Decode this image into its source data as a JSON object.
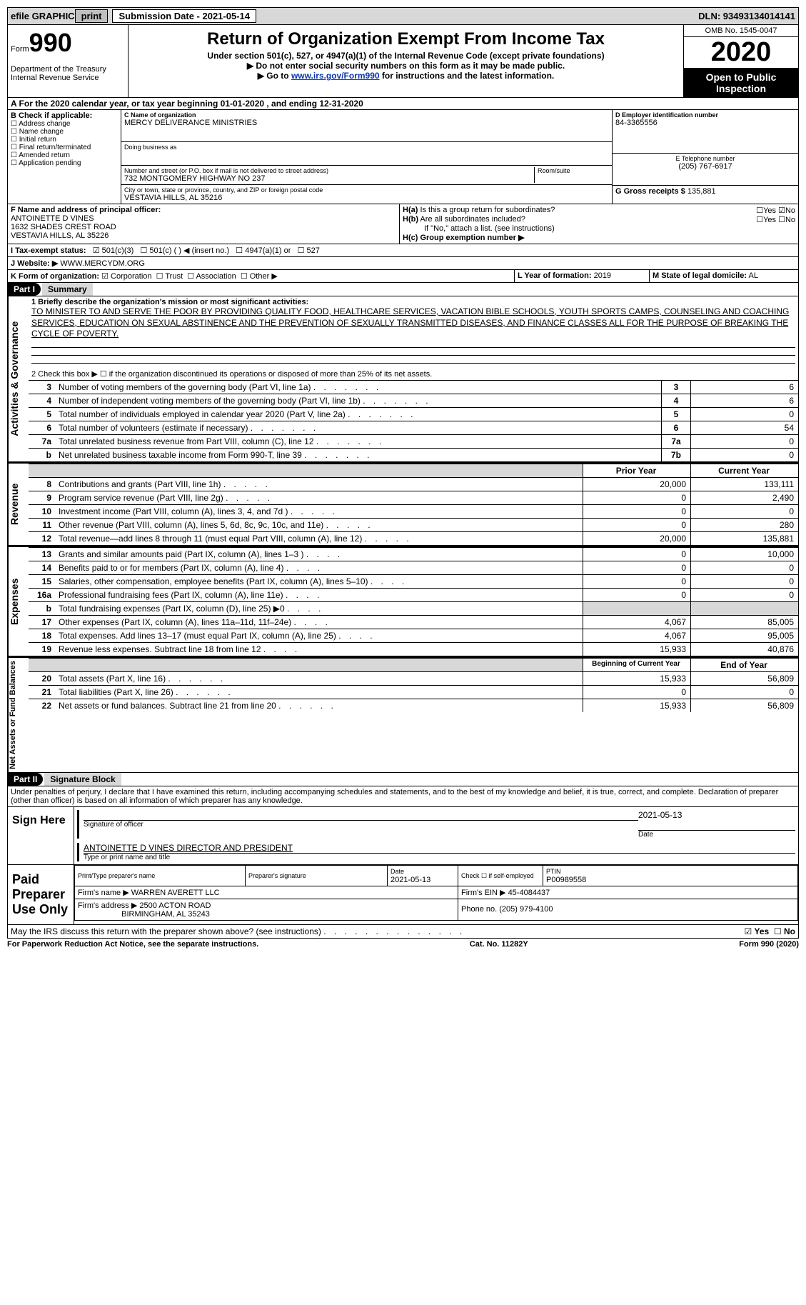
{
  "topbar": {
    "efile": "efile GRAPHIC",
    "print": "print",
    "submission": "Submission Date - 2021-05-14",
    "dln": "DLN: 93493134014141"
  },
  "header": {
    "form_prefix": "Form",
    "form_number": "990",
    "department": "Department of the Treasury\nInternal Revenue Service",
    "title": "Return of Organization Exempt From Income Tax",
    "subtitle": "Under section 501(c), 527, or 4947(a)(1) of the Internal Revenue Code (except private foundations)",
    "instr1": "▶ Do not enter social security numbers on this form as it may be made public.",
    "instr2_pre": "▶ Go to ",
    "instr2_link": "www.irs.gov/Form990",
    "instr2_post": " for instructions and the latest information.",
    "omb": "OMB No. 1545-0047",
    "year": "2020",
    "open": "Open to Public Inspection"
  },
  "period": "A For the 2020 calendar year, or tax year beginning 01-01-2020   , and ending 12-31-2020",
  "section_b": {
    "header": "B Check if applicable:",
    "items": [
      "Address change",
      "Name change",
      "Initial return",
      "Final return/terminated",
      "Amended return",
      "Application pending"
    ]
  },
  "section_c": {
    "name_label": "C Name of organization",
    "name": "MERCY DELIVERANCE MINISTRIES",
    "dba_label": "Doing business as",
    "street_label": "Number and street (or P.O. box if mail is not delivered to street address)",
    "room_label": "Room/suite",
    "street": "732 MONTGOMERY HIGHWAY NO 237",
    "city_label": "City or town, state or province, country, and ZIP or foreign postal code",
    "city": "VESTAVIA HILLS, AL  35216"
  },
  "section_d": {
    "label": "D Employer identification number",
    "value": "84-3365556"
  },
  "section_e": {
    "label": "E Telephone number",
    "value": "(205) 767-6917"
  },
  "section_g": {
    "label": "G Gross receipts $",
    "value": "135,881"
  },
  "section_f": {
    "label": "F  Name and address of principal officer:",
    "name": "ANTOINETTE D VINES",
    "street": "1632 SHADES CREST ROAD",
    "city": "VESTAVIA HILLS, AL  35226"
  },
  "section_h": {
    "a_label": "H(a)  Is this a group return for subordinates?",
    "b_label": "H(b)  Are all subordinates included?",
    "b_note": "If \"No,\" attach a list. (see instructions)",
    "c_label": "H(c)  Group exemption number ▶",
    "yes": "Yes",
    "no": "No"
  },
  "status": {
    "label": "I  Tax-exempt status:",
    "o501c3": "501(c)(3)",
    "o501c": "501(c) (  ) ◀ (insert no.)",
    "o4947": "4947(a)(1) or",
    "o527": "527"
  },
  "website": {
    "label": "J  Website: ▶",
    "value": "WWW.MERCYDM.ORG"
  },
  "section_k": {
    "label": "K Form of organization:",
    "corp": "Corporation",
    "trust": "Trust",
    "assoc": "Association",
    "other": "Other ▶"
  },
  "section_l": {
    "label": "L Year of formation:",
    "value": "2019"
  },
  "section_m": {
    "label": "M State of legal domicile:",
    "value": "AL"
  },
  "part1": {
    "header": "Part I",
    "title": "Summary",
    "l1_label": "1  Briefly describe the organization's mission or most significant activities:",
    "mission": "TO MINISTER TO AND SERVE THE POOR BY PROVIDING QUALITY FOOD, HEALTHCARE SERVICES, VACATION BIBLE SCHOOLS, YOUTH SPORTS CAMPS, COUNSELING AND COACHING SERVICES, EDUCATION ON SEXUAL ABSTINENCE AND THE PREVENTION OF SEXUALLY TRANSMITTED DISEASES, AND FINANCE CLASSES ALL FOR THE PURPOSE OF BREAKING THE CYCLE OF POVERTY.",
    "l2": "2   Check this box ▶ ☐  if the organization discontinued its operations or disposed of more than 25% of its net assets.",
    "vert_gov": "Activities & Governance",
    "vert_rev": "Revenue",
    "vert_exp": "Expenses",
    "vert_bal": "Net Assets or Fund Balances"
  },
  "gov_lines": [
    {
      "n": "3",
      "t": "Number of voting members of the governing body (Part VI, line 1a)",
      "box": "3",
      "v": "6"
    },
    {
      "n": "4",
      "t": "Number of independent voting members of the governing body (Part VI, line 1b)",
      "box": "4",
      "v": "6"
    },
    {
      "n": "5",
      "t": "Total number of individuals employed in calendar year 2020 (Part V, line 2a)",
      "box": "5",
      "v": "0"
    },
    {
      "n": "6",
      "t": "Total number of volunteers (estimate if necessary)",
      "box": "6",
      "v": "54"
    },
    {
      "n": "7a",
      "t": "Total unrelated business revenue from Part VIII, column (C), line 12",
      "box": "7a",
      "v": "0"
    },
    {
      "n": "b",
      "t": "Net unrelated business taxable income from Form 990-T, line 39",
      "box": "7b",
      "v": "0"
    }
  ],
  "rev_header": {
    "prior": "Prior Year",
    "current": "Current Year"
  },
  "rev_lines": [
    {
      "n": "8",
      "t": "Contributions and grants (Part VIII, line 1h)",
      "p": "20,000",
      "c": "133,111"
    },
    {
      "n": "9",
      "t": "Program service revenue (Part VIII, line 2g)",
      "p": "0",
      "c": "2,490"
    },
    {
      "n": "10",
      "t": "Investment income (Part VIII, column (A), lines 3, 4, and 7d )",
      "p": "0",
      "c": "0"
    },
    {
      "n": "11",
      "t": "Other revenue (Part VIII, column (A), lines 5, 6d, 8c, 9c, 10c, and 11e)",
      "p": "0",
      "c": "280"
    },
    {
      "n": "12",
      "t": "Total revenue—add lines 8 through 11 (must equal Part VIII, column (A), line 12)",
      "p": "20,000",
      "c": "135,881"
    }
  ],
  "exp_lines": [
    {
      "n": "13",
      "t": "Grants and similar amounts paid (Part IX, column (A), lines 1–3 )",
      "p": "0",
      "c": "10,000"
    },
    {
      "n": "14",
      "t": "Benefits paid to or for members (Part IX, column (A), line 4)",
      "p": "0",
      "c": "0"
    },
    {
      "n": "15",
      "t": "Salaries, other compensation, employee benefits (Part IX, column (A), lines 5–10)",
      "p": "0",
      "c": "0"
    },
    {
      "n": "16a",
      "t": "Professional fundraising fees (Part IX, column (A), line 11e)",
      "p": "0",
      "c": "0"
    },
    {
      "n": "b",
      "t": "Total fundraising expenses (Part IX, column (D), line 25) ▶0",
      "p": "",
      "c": "",
      "grey": true
    },
    {
      "n": "17",
      "t": "Other expenses (Part IX, column (A), lines 11a–11d, 11f–24e)",
      "p": "4,067",
      "c": "85,005"
    },
    {
      "n": "18",
      "t": "Total expenses. Add lines 13–17 (must equal Part IX, column (A), line 25)",
      "p": "4,067",
      "c": "95,005"
    },
    {
      "n": "19",
      "t": "Revenue less expenses. Subtract line 18 from line 12",
      "p": "15,933",
      "c": "40,876"
    }
  ],
  "bal_header": {
    "prior": "Beginning of Current Year",
    "current": "End of Year"
  },
  "bal_lines": [
    {
      "n": "20",
      "t": "Total assets (Part X, line 16)",
      "p": "15,933",
      "c": "56,809"
    },
    {
      "n": "21",
      "t": "Total liabilities (Part X, line 26)",
      "p": "0",
      "c": "0"
    },
    {
      "n": "22",
      "t": "Net assets or fund balances. Subtract line 21 from line 20",
      "p": "15,933",
      "c": "56,809"
    }
  ],
  "part2": {
    "header": "Part II",
    "title": "Signature Block",
    "declaration": "Under penalties of perjury, I declare that I have examined this return, including accompanying schedules and statements, and to the best of my knowledge and belief, it is true, correct, and complete. Declaration of preparer (other than officer) is based on all information of which preparer has any knowledge."
  },
  "sign": {
    "here": "Sign Here",
    "sig_label": "Signature of officer",
    "date_label": "Date",
    "date": "2021-05-13",
    "name": "ANTOINETTE D VINES  DIRECTOR AND PRESIDENT",
    "name_label": "Type or print name and title"
  },
  "preparer": {
    "label": "Paid Preparer Use Only",
    "print_label": "Print/Type preparer's name",
    "sig_label": "Preparer's signature",
    "date_label": "Date",
    "date": "2021-05-13",
    "check_label": "Check ☐ if self-employed",
    "ptin_label": "PTIN",
    "ptin": "P00989558",
    "firm_name_label": "Firm's name    ▶",
    "firm_name": "WARREN AVERETT LLC",
    "firm_ein_label": "Firm's EIN ▶",
    "firm_ein": "45-4084437",
    "firm_addr_label": "Firm's address ▶",
    "firm_addr1": "2500 ACTON ROAD",
    "firm_addr2": "BIRMINGHAM, AL  35243",
    "phone_label": "Phone no.",
    "phone": "(205) 979-4100"
  },
  "discuss": {
    "text": "May the IRS discuss this return with the preparer shown above? (see instructions)",
    "yes": "Yes",
    "no": "No"
  },
  "footer": {
    "left": "For Paperwork Reduction Act Notice, see the separate instructions.",
    "mid": "Cat. No. 11282Y",
    "right": "Form 990 (2020)"
  }
}
